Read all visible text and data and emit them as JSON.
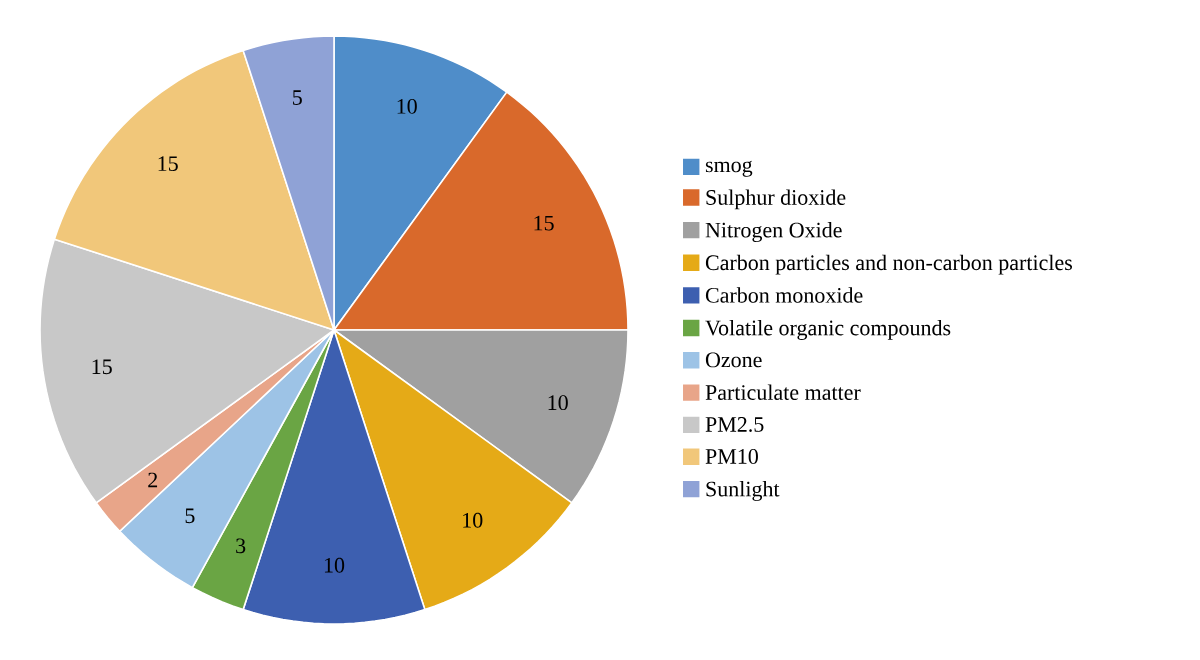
{
  "chart_data": {
    "type": "pie",
    "categories": [
      "smog",
      "Sulphur dioxide",
      "Nitrogen Oxide",
      "Carbon particles and non-carbon particles",
      "Carbon monoxide",
      "Volatile organic compounds",
      "Ozone",
      "Particulate matter",
      "PM2.5",
      "PM10",
      "Sunlight"
    ],
    "values": [
      10,
      15,
      10,
      10,
      10,
      3,
      5,
      2,
      15,
      15,
      5
    ],
    "colors": [
      "#4f8dc9",
      "#d9692b",
      "#a0a0a0",
      "#e5aa17",
      "#3d5fb0",
      "#6aa544",
      "#9dc3e6",
      "#e8a589",
      "#c8c8c8",
      "#f1c77a",
      "#8fa2d6"
    ],
    "data_labels": true,
    "legend": "right"
  }
}
